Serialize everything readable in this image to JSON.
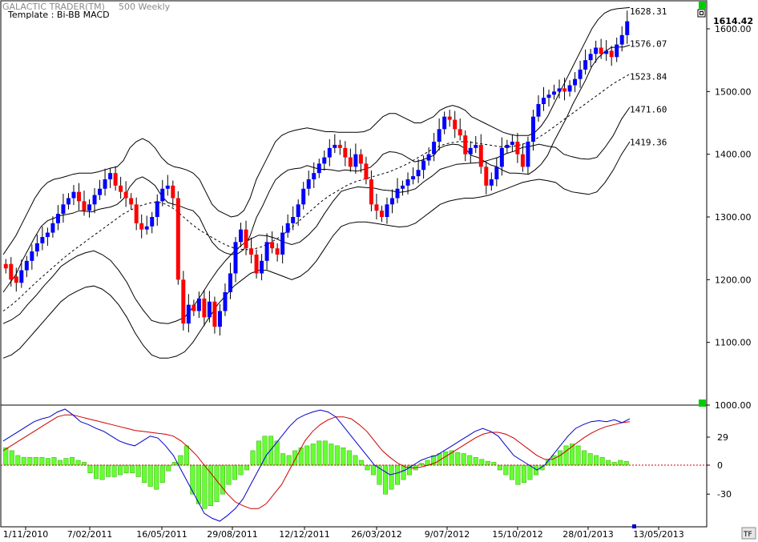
{
  "app": {
    "title": "GALACTIC TRADER(TM)",
    "instrument": "500 Weekly",
    "template": "Template : Bi-BB MACD",
    "tf_button": "TF"
  },
  "colors": {
    "up_candle": "#0000ff",
    "down_candle": "#ff0000",
    "band": "#000000",
    "macd_line": "#0000cc",
    "signal_line": "#cc0000",
    "histogram": "#66ff33",
    "zero_line": "#cc0000",
    "marker": "#00cc00"
  },
  "chart_data": [
    {
      "type": "candlestick",
      "title": "",
      "price_ticks": [
        "1600.00",
        "1500.00",
        "1400.00",
        "1300.00",
        "1200.00",
        "1100.00",
        "1000.00"
      ],
      "ylim": [
        1000,
        1650
      ],
      "last_price": "1614.42",
      "band_labels": [
        "1628.31",
        "1576.07",
        "1523.84",
        "1471.60",
        "1419.36"
      ],
      "date_ticks": [
        "1/11/2010",
        "7/02/2011",
        "16/05/2011",
        "29/08/2011",
        "12/12/2011",
        "26/03/2012",
        "9/07/2012",
        "15/10/2012",
        "28/01/2013",
        "13/05/2013"
      ],
      "close": [
        1218,
        1200,
        1195,
        1215,
        1230,
        1245,
        1258,
        1268,
        1275,
        1290,
        1305,
        1320,
        1330,
        1340,
        1325,
        1310,
        1320,
        1335,
        1345,
        1360,
        1370,
        1350,
        1340,
        1330,
        1320,
        1290,
        1280,
        1285,
        1300,
        1325,
        1345,
        1350,
        1330,
        1200,
        1130,
        1160,
        1150,
        1170,
        1140,
        1165,
        1125,
        1150,
        1180,
        1210,
        1260,
        1280,
        1250,
        1240,
        1210,
        1230,
        1260,
        1250,
        1240,
        1275,
        1290,
        1300,
        1320,
        1345,
        1360,
        1370,
        1385,
        1395,
        1410,
        1415,
        1410,
        1395,
        1380,
        1400,
        1385,
        1360,
        1320,
        1310,
        1300,
        1320,
        1330,
        1345,
        1350,
        1360,
        1365,
        1375,
        1390,
        1400,
        1420,
        1440,
        1460,
        1455,
        1440,
        1430,
        1400,
        1410,
        1415,
        1380,
        1350,
        1360,
        1380,
        1410,
        1415,
        1420,
        1400,
        1380,
        1420,
        1460,
        1480,
        1490,
        1495,
        1500,
        1505,
        1500,
        1510,
        1520,
        1535,
        1550,
        1560,
        1570,
        1560,
        1565,
        1555,
        1575,
        1590,
        1612
      ],
      "open": [
        1225,
        1225,
        1205,
        1195,
        1215,
        1230,
        1245,
        1258,
        1268,
        1275,
        1290,
        1305,
        1320,
        1330,
        1340,
        1325,
        1310,
        1320,
        1335,
        1345,
        1360,
        1370,
        1350,
        1340,
        1330,
        1320,
        1290,
        1280,
        1285,
        1300,
        1325,
        1345,
        1350,
        1330,
        1200,
        1130,
        1160,
        1150,
        1170,
        1140,
        1165,
        1125,
        1150,
        1180,
        1210,
        1260,
        1280,
        1250,
        1240,
        1210,
        1230,
        1260,
        1250,
        1240,
        1275,
        1290,
        1300,
        1320,
        1345,
        1360,
        1370,
        1385,
        1395,
        1410,
        1415,
        1410,
        1395,
        1380,
        1400,
        1385,
        1360,
        1320,
        1310,
        1300,
        1320,
        1330,
        1345,
        1350,
        1360,
        1365,
        1375,
        1390,
        1400,
        1420,
        1440,
        1460,
        1455,
        1440,
        1430,
        1400,
        1410,
        1415,
        1380,
        1350,
        1360,
        1380,
        1410,
        1415,
        1420,
        1400,
        1380,
        1420,
        1460,
        1480,
        1490,
        1495,
        1500,
        1505,
        1500,
        1510,
        1520,
        1535,
        1550,
        1560,
        1570,
        1560,
        1565,
        1555,
        1575,
        1590
      ],
      "band_upper_outer": [
        1240,
        1255,
        1270,
        1290,
        1310,
        1330,
        1345,
        1355,
        1360,
        1362,
        1365,
        1368,
        1370,
        1370,
        1370,
        1372,
        1375,
        1378,
        1380,
        1390,
        1410,
        1420,
        1425,
        1420,
        1410,
        1395,
        1385,
        1380,
        1378,
        1375,
        1370,
        1360,
        1340,
        1320,
        1310,
        1305,
        1300,
        1302,
        1310,
        1330,
        1360,
        1380,
        1400,
        1420,
        1430,
        1435,
        1438,
        1440,
        1442,
        1440,
        1438,
        1436,
        1436,
        1435,
        1435,
        1435,
        1435,
        1436,
        1440,
        1450,
        1460,
        1465,
        1465,
        1460,
        1455,
        1450,
        1450,
        1455,
        1460,
        1470,
        1475,
        1478,
        1475,
        1470,
        1460,
        1455,
        1450,
        1445,
        1440,
        1435,
        1432,
        1430,
        1430,
        1430,
        1435,
        1445,
        1460,
        1480,
        1500,
        1520,
        1540,
        1560,
        1580,
        1600,
        1615,
        1625,
        1630,
        1632,
        1633,
        1634
      ],
      "band_mid": [
        1150,
        1160,
        1172,
        1185,
        1198,
        1210,
        1222,
        1234,
        1245,
        1255,
        1265,
        1275,
        1285,
        1295,
        1305,
        1312,
        1318,
        1322,
        1324,
        1320,
        1312,
        1300,
        1288,
        1278,
        1270,
        1262,
        1255,
        1250,
        1248,
        1248,
        1252,
        1258,
        1266,
        1276,
        1288,
        1300,
        1312,
        1324,
        1334,
        1342,
        1350,
        1356,
        1360,
        1364,
        1368,
        1372,
        1378,
        1384,
        1392,
        1400,
        1408,
        1414,
        1418,
        1420,
        1420,
        1418,
        1416,
        1414,
        1412,
        1412,
        1414,
        1418,
        1424,
        1432,
        1442,
        1452,
        1462,
        1472,
        1482,
        1492,
        1502,
        1512,
        1520,
        1528
      ],
      "band_lower_outer": [
        1075,
        1080,
        1090,
        1105,
        1120,
        1135,
        1150,
        1165,
        1175,
        1182,
        1188,
        1190,
        1185,
        1175,
        1160,
        1140,
        1115,
        1095,
        1080,
        1075,
        1075,
        1078,
        1085,
        1100,
        1120,
        1140,
        1160,
        1175,
        1190,
        1200,
        1210,
        1215,
        1215,
        1210,
        1205,
        1200,
        1205,
        1215,
        1230,
        1250,
        1270,
        1285,
        1290,
        1292,
        1292,
        1290,
        1288,
        1286,
        1284,
        1285,
        1290,
        1300,
        1310,
        1320,
        1325,
        1328,
        1330,
        1330,
        1332,
        1335,
        1340,
        1345,
        1350,
        1355,
        1358,
        1360,
        1358,
        1355,
        1345,
        1340,
        1338,
        1336,
        1340,
        1355,
        1375,
        1400,
        1420
      ],
      "series": [
        {
          "name": "upper_outer_band",
          "values_ref": "band_upper_outer"
        },
        {
          "name": "mid_band",
          "values_ref": "band_mid"
        },
        {
          "name": "lower_outer_band",
          "values_ref": "band_lower_outer"
        }
      ],
      "grid": false
    },
    {
      "type": "bar",
      "title": "",
      "ticks": [
        "29",
        "0",
        "-30"
      ],
      "ylim": [
        -60,
        60
      ],
      "macd": [
        25,
        30,
        35,
        40,
        45,
        48,
        50,
        55,
        58,
        52,
        45,
        42,
        38,
        35,
        30,
        25,
        22,
        20,
        25,
        30,
        28,
        20,
        10,
        -5,
        -20,
        -35,
        -50,
        -55,
        -58,
        -52,
        -45,
        -35,
        -20,
        -5,
        10,
        20,
        30,
        40,
        48,
        52,
        55,
        57,
        55,
        50,
        40,
        30,
        20,
        10,
        0,
        -5,
        -10,
        -8,
        -5,
        0,
        5,
        8,
        10,
        15,
        20,
        25,
        30,
        35,
        38,
        35,
        30,
        20,
        10,
        5,
        0,
        -5,
        0,
        10,
        20,
        30,
        38,
        42,
        45,
        46,
        45,
        47,
        44,
        48
      ],
      "signal": [
        15,
        20,
        25,
        30,
        35,
        40,
        45,
        50,
        52,
        52,
        50,
        48,
        46,
        44,
        42,
        40,
        38,
        36,
        35,
        34,
        33,
        32,
        30,
        25,
        18,
        10,
        0,
        -10,
        -20,
        -30,
        -38,
        -42,
        -45,
        -45,
        -40,
        -30,
        -20,
        -5,
        10,
        25,
        35,
        42,
        47,
        50,
        50,
        48,
        42,
        35,
        25,
        15,
        8,
        2,
        -2,
        -3,
        -2,
        0,
        3,
        8,
        13,
        18,
        23,
        28,
        32,
        34,
        34,
        32,
        28,
        22,
        16,
        10,
        6,
        6,
        10,
        16,
        22,
        28,
        33,
        37,
        40,
        42,
        44,
        45
      ],
      "histogram": [
        18,
        15,
        10,
        8,
        8,
        8,
        8,
        7,
        8,
        5,
        7,
        8,
        5,
        3,
        -8,
        -14,
        -15,
        -12,
        -12,
        -10,
        -8,
        -8,
        -12,
        -18,
        -22,
        -25,
        -18,
        -6,
        3,
        10,
        20,
        -30,
        -40,
        -45,
        -42,
        -38,
        -30,
        -20,
        -15,
        -10,
        -5,
        15,
        25,
        30,
        30,
        25,
        12,
        10,
        15,
        18,
        20,
        22,
        25,
        25,
        22,
        20,
        18,
        15,
        10,
        5,
        -5,
        -10,
        -20,
        -30,
        -25,
        -20,
        -15,
        -10,
        -5,
        2,
        5,
        10,
        12,
        14,
        15,
        13,
        12,
        10,
        8,
        6,
        4,
        3,
        -5,
        -10,
        -15,
        -20,
        -18,
        -15,
        -10,
        -5,
        5,
        10,
        15,
        20,
        22,
        20,
        15,
        12,
        10,
        8,
        5,
        3,
        5,
        4
      ]
    }
  ]
}
